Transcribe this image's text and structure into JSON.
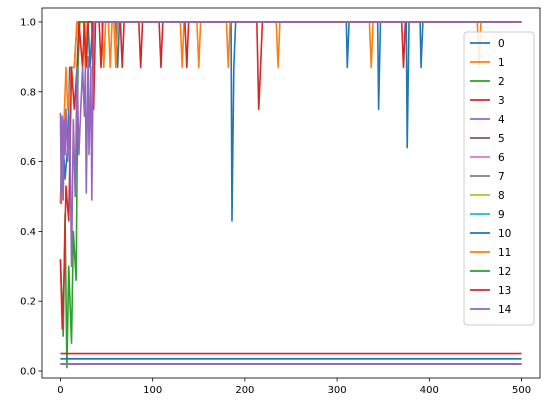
{
  "chart_data": {
    "type": "line",
    "title": "",
    "xlabel": "",
    "ylabel": "",
    "xlim": [
      -20,
      520
    ],
    "ylim": [
      -0.02,
      1.04
    ],
    "x_ticks": [
      0,
      100,
      200,
      300,
      400,
      500
    ],
    "y_ticks": [
      0.0,
      0.2,
      0.4,
      0.6,
      0.8,
      1.0
    ],
    "x_tick_labels": [
      "0",
      "100",
      "200",
      "300",
      "400",
      "500"
    ],
    "y_tick_labels": [
      "0.0",
      "0.2",
      "0.4",
      "0.6",
      "0.8",
      "1.0"
    ],
    "grid": false,
    "legend_position": "right",
    "series": [
      {
        "name": "0",
        "color": "#1f77b4",
        "points": [
          [
            0,
            0.48
          ],
          [
            2,
            0.7
          ],
          [
            5,
            0.55
          ],
          [
            8,
            0.65
          ],
          [
            10,
            0.87
          ],
          [
            15,
            0.87
          ],
          [
            18,
            1.0
          ],
          [
            30,
            1.0
          ],
          [
            32,
            0.87
          ],
          [
            35,
            1.0
          ],
          [
            60,
            1.0
          ],
          [
            62,
            0.87
          ],
          [
            64,
            1.0
          ],
          [
            185,
            1.0
          ],
          [
            186,
            0.43
          ],
          [
            188,
            0.87
          ],
          [
            190,
            1.0
          ],
          [
            310,
            1.0
          ],
          [
            311,
            0.87
          ],
          [
            313,
            1.0
          ],
          [
            344,
            1.0
          ],
          [
            345,
            0.75
          ],
          [
            347,
            1.0
          ],
          [
            375,
            1.0
          ],
          [
            376,
            0.64
          ],
          [
            378,
            1.0
          ],
          [
            390,
            1.0
          ],
          [
            391,
            0.87
          ],
          [
            393,
            1.0
          ],
          [
            500,
            1.0
          ]
        ]
      },
      {
        "name": "1",
        "color": "#ff7f0e",
        "points": [
          [
            0,
            0.48
          ],
          [
            3,
            0.65
          ],
          [
            6,
            0.87
          ],
          [
            8,
            0.75
          ],
          [
            12,
            0.87
          ],
          [
            15,
            0.87
          ],
          [
            18,
            1.0
          ],
          [
            25,
            1.0
          ],
          [
            27,
            0.87
          ],
          [
            29,
            1.0
          ],
          [
            45,
            1.0
          ],
          [
            47,
            0.87
          ],
          [
            49,
            1.0
          ],
          [
            52,
            1.0
          ],
          [
            54,
            0.87
          ],
          [
            56,
            1.0
          ],
          [
            58,
            1.0
          ],
          [
            60,
            0.87
          ],
          [
            62,
            1.0
          ],
          [
            130,
            1.0
          ],
          [
            132,
            0.87
          ],
          [
            134,
            1.0
          ],
          [
            148,
            1.0
          ],
          [
            150,
            0.87
          ],
          [
            152,
            1.0
          ],
          [
            180,
            1.0
          ],
          [
            182,
            0.87
          ],
          [
            184,
            1.0
          ],
          [
            234,
            1.0
          ],
          [
            236,
            0.87
          ],
          [
            238,
            1.0
          ],
          [
            335,
            1.0
          ],
          [
            337,
            0.87
          ],
          [
            339,
            1.0
          ],
          [
            452,
            1.0
          ],
          [
            454,
            0.87
          ],
          [
            456,
            1.0
          ],
          [
            500,
            1.0
          ]
        ]
      },
      {
        "name": "2",
        "color": "#2ca02c",
        "points": [
          [
            0,
            0.32
          ],
          [
            3,
            0.1
          ],
          [
            5,
            0.45
          ],
          [
            7,
            0.01
          ],
          [
            9,
            0.3
          ],
          [
            12,
            0.08
          ],
          [
            14,
            0.4
          ],
          [
            17,
            0.26
          ],
          [
            19,
            0.87
          ],
          [
            21,
            1.0
          ],
          [
            500,
            1.0
          ]
        ]
      },
      {
        "name": "3",
        "color": "#d62728",
        "points": [
          [
            0,
            0.32
          ],
          [
            2,
            0.12
          ],
          [
            4,
            0.28
          ],
          [
            6,
            0.53
          ],
          [
            9,
            0.43
          ],
          [
            12,
            0.87
          ],
          [
            15,
            0.75
          ],
          [
            18,
            0.87
          ],
          [
            20,
            1.0
          ],
          [
            24,
            0.87
          ],
          [
            26,
            1.0
          ],
          [
            28,
            0.87
          ],
          [
            30,
            1.0
          ],
          [
            34,
            1.0
          ],
          [
            36,
            0.75
          ],
          [
            38,
            1.0
          ],
          [
            42,
            1.0
          ],
          [
            44,
            0.87
          ],
          [
            46,
            1.0
          ],
          [
            65,
            1.0
          ],
          [
            67,
            0.87
          ],
          [
            69,
            1.0
          ],
          [
            85,
            1.0
          ],
          [
            87,
            0.87
          ],
          [
            89,
            1.0
          ],
          [
            107,
            1.0
          ],
          [
            109,
            0.87
          ],
          [
            111,
            1.0
          ],
          [
            135,
            1.0
          ],
          [
            137,
            0.87
          ],
          [
            139,
            1.0
          ],
          [
            213,
            1.0
          ],
          [
            215,
            0.75
          ],
          [
            217,
            0.87
          ],
          [
            219,
            1.0
          ],
          [
            370,
            1.0
          ],
          [
            372,
            0.87
          ],
          [
            374,
            1.0
          ],
          [
            500,
            1.0
          ]
        ]
      },
      {
        "name": "4",
        "color": "#9467bd",
        "points": [
          [
            0,
            0.74
          ],
          [
            1,
            0.48
          ],
          [
            2,
            0.73
          ],
          [
            3,
            0.49
          ],
          [
            4,
            0.72
          ],
          [
            5,
            0.62
          ],
          [
            6,
            0.75
          ],
          [
            8,
            0.6
          ],
          [
            10,
            0.73
          ],
          [
            12,
            0.3
          ],
          [
            14,
            0.72
          ],
          [
            16,
            0.5
          ],
          [
            18,
            0.87
          ],
          [
            20,
            0.62
          ],
          [
            22,
            0.75
          ],
          [
            24,
            0.87
          ],
          [
            26,
            0.73
          ],
          [
            27,
            0.87
          ],
          [
            28,
            0.51
          ],
          [
            30,
            0.9
          ],
          [
            31,
            0.62
          ],
          [
            33,
            0.87
          ],
          [
            34,
            0.49
          ],
          [
            36,
            1.0
          ],
          [
            500,
            1.0
          ]
        ]
      },
      {
        "name": "5",
        "color": "#8c564b",
        "points": [
          [
            0,
            0.02
          ],
          [
            500,
            0.02
          ]
        ]
      },
      {
        "name": "6",
        "color": "#e377c2",
        "points": [
          [
            0,
            0.02
          ],
          [
            500,
            0.02
          ]
        ]
      },
      {
        "name": "7",
        "color": "#7f7f7f",
        "points": [
          [
            0,
            0.02
          ],
          [
            500,
            0.02
          ]
        ]
      },
      {
        "name": "8",
        "color": "#bcbd22",
        "points": [
          [
            0,
            0.02
          ],
          [
            500,
            0.02
          ]
        ]
      },
      {
        "name": "9",
        "color": "#17becf",
        "points": [
          [
            0,
            0.035
          ],
          [
            500,
            0.035
          ]
        ]
      },
      {
        "name": "10",
        "color": "#1f77b4",
        "points": [
          [
            0,
            0.035
          ],
          [
            500,
            0.035
          ]
        ]
      },
      {
        "name": "11",
        "color": "#ff7f0e",
        "points": [
          [
            0,
            0.02
          ],
          [
            500,
            0.02
          ]
        ]
      },
      {
        "name": "12",
        "color": "#2ca02c",
        "points": [
          [
            0,
            0.02
          ],
          [
            500,
            0.02
          ]
        ]
      },
      {
        "name": "13",
        "color": "#d62728",
        "points": [
          [
            0,
            0.05
          ],
          [
            500,
            0.05
          ]
        ]
      },
      {
        "name": "14",
        "color": "#9467bd",
        "points": [
          [
            0,
            0.02
          ],
          [
            500,
            0.02
          ]
        ]
      }
    ]
  }
}
